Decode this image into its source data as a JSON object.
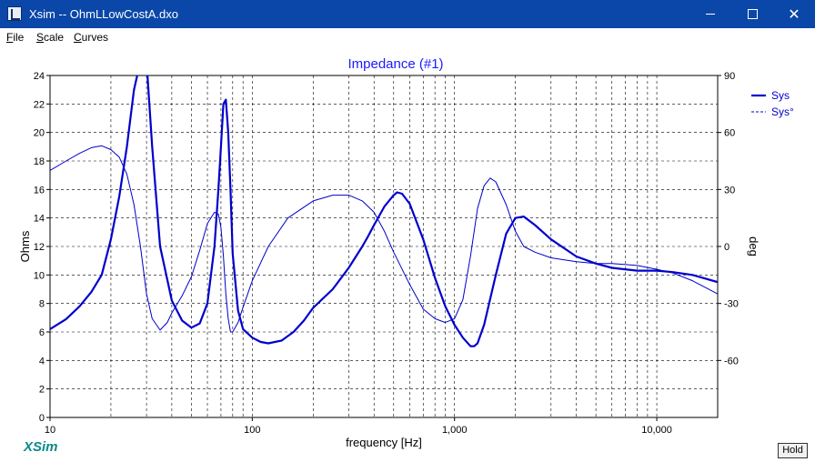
{
  "window": {
    "title": "Xsim -- OhmLLowCostA.dxo",
    "icon": "xsim-app-icon",
    "controls": [
      "minimize-icon",
      "maximize-icon",
      "close-icon"
    ]
  },
  "menu": {
    "items": [
      {
        "label": "File",
        "accel": "F",
        "rest": "ile"
      },
      {
        "label": "Scale",
        "accel": "S",
        "rest": "cale"
      },
      {
        "label": "Curves",
        "accel": "C",
        "rest": "urves"
      }
    ]
  },
  "brand": "XSim",
  "hold_label": "Hold",
  "colors": {
    "curve": "#0000cc",
    "title": "#1a1aff",
    "titlebar": "#0a47a8",
    "grid": "#000000"
  },
  "chart_data": {
    "type": "line",
    "title": "Impedance (#1)",
    "xlabel": "frequency [Hz]",
    "ylabel": "Ohms",
    "y2label": "deg",
    "xscale": "log",
    "xlim": [
      10,
      20000
    ],
    "ylim": [
      0,
      24
    ],
    "y2lim": [
      -90,
      90
    ],
    "x_ticks": [
      10,
      100,
      1000,
      10000
    ],
    "x_tick_labels": [
      "10",
      "100",
      "1,000",
      "10,000"
    ],
    "y_ticks": [
      0,
      2,
      4,
      6,
      8,
      10,
      12,
      14,
      16,
      18,
      20,
      22,
      24
    ],
    "y_tick_labels": [
      "0",
      "2",
      "4",
      "6",
      "8",
      "10",
      "12",
      "14",
      "16",
      "18",
      "20",
      "22",
      "24"
    ],
    "y2_ticks": [
      90,
      60,
      30,
      0,
      -30,
      -60
    ],
    "y2_tick_labels": [
      "90",
      "60",
      "30",
      "0",
      "-30",
      "-60"
    ],
    "grid": true,
    "legend": "top-right",
    "series": [
      {
        "name": "Sys",
        "axis": "left",
        "style": "solid",
        "x": [
          10,
          12,
          14,
          16,
          18,
          20,
          22,
          24,
          26,
          28,
          30,
          32,
          35,
          40,
          45,
          50,
          55,
          60,
          65,
          68,
          70,
          72,
          74,
          76,
          78,
          80,
          85,
          90,
          100,
          110,
          120,
          140,
          160,
          180,
          200,
          250,
          300,
          350,
          370,
          400,
          450,
          500,
          520,
          550,
          600,
          700,
          800,
          900,
          1000,
          1100,
          1200,
          1250,
          1300,
          1400,
          1600,
          1800,
          2000,
          2200,
          2500,
          3000,
          4000,
          5000,
          6000,
          8000,
          10000,
          12000,
          15000,
          20000
        ],
        "y": [
          6.2,
          6.9,
          7.8,
          8.8,
          10.0,
          12.5,
          15.5,
          19.0,
          23.0,
          25.0,
          25.0,
          19.0,
          12.0,
          8.2,
          6.8,
          6.3,
          6.6,
          8.0,
          12.0,
          16.0,
          19.0,
          22.0,
          22.3,
          20.0,
          16.0,
          11.5,
          7.5,
          6.2,
          5.6,
          5.3,
          5.2,
          5.4,
          6.0,
          6.8,
          7.7,
          9.0,
          10.5,
          12.0,
          12.6,
          13.5,
          14.8,
          15.6,
          15.8,
          15.7,
          15.0,
          12.5,
          9.8,
          7.8,
          6.5,
          5.6,
          5.0,
          5.0,
          5.2,
          6.5,
          10.0,
          12.9,
          14.0,
          14.1,
          13.5,
          12.5,
          11.3,
          10.8,
          10.5,
          10.3,
          10.3,
          10.2,
          10.0,
          9.5
        ]
      },
      {
        "name": "Sys°",
        "axis": "right",
        "style": "dashed",
        "x": [
          10,
          12,
          14,
          16,
          18,
          20,
          22,
          24,
          26,
          28,
          30,
          32,
          35,
          38,
          40,
          45,
          50,
          55,
          60,
          65,
          68,
          70,
          72,
          74,
          76,
          78,
          80,
          85,
          90,
          100,
          120,
          150,
          200,
          250,
          300,
          350,
          400,
          450,
          500,
          600,
          700,
          800,
          900,
          1000,
          1100,
          1200,
          1300,
          1400,
          1500,
          1600,
          1800,
          2000,
          2200,
          2500,
          3000,
          4000,
          5000,
          6000,
          8000,
          10000,
          12000,
          15000,
          20000
        ],
        "y": [
          40,
          45,
          49,
          52,
          53,
          51,
          47,
          38,
          22,
          0,
          -25,
          -38,
          -44,
          -40,
          -35,
          -26,
          -16,
          -2,
          12,
          18,
          17,
          10,
          -5,
          -25,
          -38,
          -45,
          -45,
          -40,
          -32,
          -18,
          0,
          15,
          24,
          27,
          27,
          24,
          18,
          8,
          -3,
          -20,
          -33,
          -38,
          -40,
          -38,
          -28,
          -5,
          20,
          32,
          36,
          34,
          22,
          8,
          0,
          -3,
          -6,
          -8,
          -9,
          -9,
          -10,
          -12,
          -14,
          -18,
          -25
        ]
      }
    ]
  }
}
